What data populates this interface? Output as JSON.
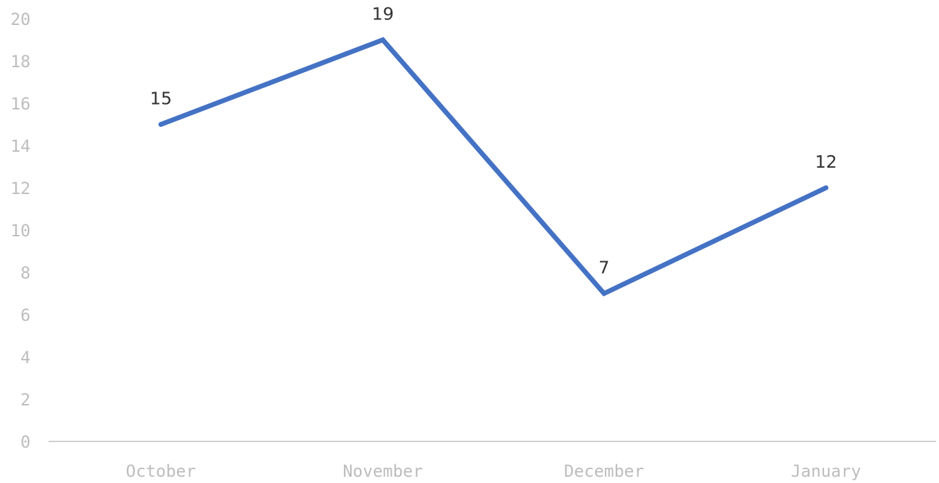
{
  "chart_data": {
    "type": "line",
    "title": "",
    "xlabel": "",
    "ylabel": "",
    "categories": [
      "October",
      "November",
      "December",
      "January"
    ],
    "series": [
      {
        "values": [
          15,
          19,
          7,
          12
        ],
        "color": "#4472c4"
      }
    ],
    "ylim": [
      0,
      20
    ],
    "y_ticks": [
      "0",
      "2",
      "4",
      "6",
      "8",
      "10",
      "12",
      "14",
      "16",
      "18",
      "20"
    ],
    "data_labels": [
      "15",
      "19",
      "7",
      "12"
    ],
    "grid": false,
    "legend": "none"
  }
}
